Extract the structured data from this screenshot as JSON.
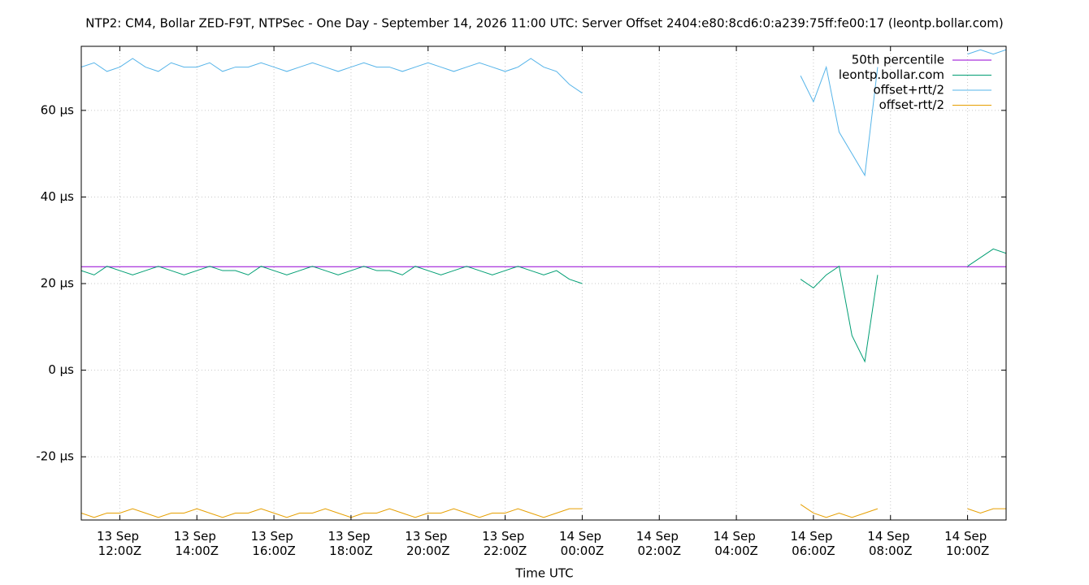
{
  "chart_data": {
    "type": "line",
    "title": "NTP2: CM4, Bollar ZED-F9T, NTPSec - One Day - September 14, 2026 11:00 UTC: Server Offset 2404:e80:8cd6:0:a239:75ff:fe00:17 (leontp.bollar.com)",
    "x_label": "Time UTC",
    "xlim": [
      "2026-09-13T11:00:00Z",
      "2026-09-14T11:00:00Z"
    ],
    "xticks": [
      {
        "value": "2026-09-13T12:00:00Z",
        "label": "13 Sep 12:00Z"
      },
      {
        "value": "2026-09-13T14:00:00Z",
        "label": "13 Sep 14:00Z"
      },
      {
        "value": "2026-09-13T16:00:00Z",
        "label": "13 Sep 16:00Z"
      },
      {
        "value": "2026-09-13T18:00:00Z",
        "label": "13 Sep 18:00Z"
      },
      {
        "value": "2026-09-13T20:00:00Z",
        "label": "13 Sep 20:00Z"
      },
      {
        "value": "2026-09-13T22:00:00Z",
        "label": "13 Sep 22:00Z"
      },
      {
        "value": "2026-09-14T00:00:00Z",
        "label": "14 Sep 00:00Z"
      },
      {
        "value": "2026-09-14T02:00:00Z",
        "label": "14 Sep 02:00Z"
      },
      {
        "value": "2026-09-14T04:00:00Z",
        "label": "14 Sep 04:00Z"
      },
      {
        "value": "2026-09-14T06:00:00Z",
        "label": "14 Sep 06:00Z"
      },
      {
        "value": "2026-09-14T08:00:00Z",
        "label": "14 Sep 08:00Z"
      },
      {
        "value": "2026-09-14T10:00:00Z",
        "label": "14 Sep 10:00Z"
      }
    ],
    "ylim": [
      -34.6,
      74.8
    ],
    "yticks": [
      {
        "value": -20,
        "label": "-20 µs"
      },
      {
        "value": 0,
        "label": "0 µs"
      },
      {
        "value": 20,
        "label": "20 µs"
      },
      {
        "value": 40,
        "label": "40 µs"
      },
      {
        "value": 60,
        "label": "60 µs"
      }
    ],
    "grid": true,
    "legend": "top-right",
    "x": [
      "2026-09-13T11:00:00Z",
      "2026-09-13T11:20:00Z",
      "2026-09-13T11:40:00Z",
      "2026-09-13T12:00:00Z",
      "2026-09-13T12:20:00Z",
      "2026-09-13T12:40:00Z",
      "2026-09-13T13:00:00Z",
      "2026-09-13T13:20:00Z",
      "2026-09-13T13:40:00Z",
      "2026-09-13T14:00:00Z",
      "2026-09-13T14:20:00Z",
      "2026-09-13T14:40:00Z",
      "2026-09-13T15:00:00Z",
      "2026-09-13T15:20:00Z",
      "2026-09-13T15:40:00Z",
      "2026-09-13T16:00:00Z",
      "2026-09-13T16:20:00Z",
      "2026-09-13T16:40:00Z",
      "2026-09-13T17:00:00Z",
      "2026-09-13T17:20:00Z",
      "2026-09-13T17:40:00Z",
      "2026-09-13T18:00:00Z",
      "2026-09-13T18:20:00Z",
      "2026-09-13T18:40:00Z",
      "2026-09-13T19:00:00Z",
      "2026-09-13T19:20:00Z",
      "2026-09-13T19:40:00Z",
      "2026-09-13T20:00:00Z",
      "2026-09-13T20:20:00Z",
      "2026-09-13T20:40:00Z",
      "2026-09-13T21:00:00Z",
      "2026-09-13T21:20:00Z",
      "2026-09-13T21:40:00Z",
      "2026-09-13T22:00:00Z",
      "2026-09-13T22:20:00Z",
      "2026-09-13T22:40:00Z",
      "2026-09-13T23:00:00Z",
      "2026-09-13T23:20:00Z",
      "2026-09-13T23:40:00Z",
      "2026-09-14T00:00:00Z",
      "2026-09-14T00:20:00Z",
      "2026-09-14T00:40:00Z",
      "2026-09-14T01:00:00Z",
      "2026-09-14T01:20:00Z",
      "2026-09-14T01:40:00Z",
      "2026-09-14T02:00:00Z",
      "2026-09-14T02:20:00Z",
      "2026-09-14T02:40:00Z",
      "2026-09-14T03:00:00Z",
      "2026-09-14T03:20:00Z",
      "2026-09-14T03:40:00Z",
      "2026-09-14T04:00:00Z",
      "2026-09-14T04:20:00Z",
      "2026-09-14T04:40:00Z",
      "2026-09-14T05:00:00Z",
      "2026-09-14T05:20:00Z",
      "2026-09-14T05:40:00Z",
      "2026-09-14T06:00:00Z",
      "2026-09-14T06:20:00Z",
      "2026-09-14T06:40:00Z",
      "2026-09-14T07:00:00Z",
      "2026-09-14T07:20:00Z",
      "2026-09-14T07:40:00Z",
      "2026-09-14T08:00:00Z",
      "2026-09-14T08:20:00Z",
      "2026-09-14T08:40:00Z",
      "2026-09-14T09:00:00Z",
      "2026-09-14T09:20:00Z",
      "2026-09-14T09:40:00Z",
      "2026-09-14T10:00:00Z",
      "2026-09-14T10:20:00Z",
      "2026-09-14T10:40:00Z",
      "2026-09-14T11:00:00Z"
    ],
    "series": [
      {
        "name": "50th percentile",
        "color": "#9400d3",
        "x": [
          "2026-09-13T11:00:00Z",
          "2026-09-14T11:00:00Z"
        ],
        "values": [
          23.9,
          23.9
        ]
      },
      {
        "name": "leontp.bollar.com",
        "color": "#009e73",
        "values": [
          23,
          22,
          24,
          23,
          22,
          23,
          24,
          23,
          22,
          23,
          24,
          23,
          23,
          22,
          24,
          23,
          22,
          23,
          24,
          23,
          22,
          23,
          24,
          23,
          23,
          22,
          24,
          23,
          22,
          23,
          24,
          23,
          22,
          23,
          24,
          23,
          22,
          23,
          21,
          20,
          null,
          null,
          null,
          null,
          null,
          null,
          null,
          null,
          null,
          null,
          null,
          null,
          null,
          null,
          null,
          null,
          21,
          19,
          22,
          24,
          8,
          2,
          22,
          null,
          null,
          null,
          null,
          null,
          null,
          24,
          26,
          28,
          27
        ]
      },
      {
        "name": "offset+rtt/2",
        "color": "#56b4e9",
        "values": [
          70,
          71,
          69,
          70,
          72,
          70,
          69,
          71,
          70,
          70,
          71,
          69,
          70,
          70,
          71,
          70,
          69,
          70,
          71,
          70,
          69,
          70,
          71,
          70,
          70,
          69,
          70,
          71,
          70,
          69,
          70,
          71,
          70,
          69,
          70,
          72,
          70,
          69,
          66,
          64,
          null,
          null,
          null,
          null,
          null,
          null,
          null,
          null,
          null,
          null,
          null,
          null,
          null,
          null,
          null,
          null,
          68,
          62,
          70,
          55,
          50,
          45,
          70,
          null,
          null,
          null,
          null,
          null,
          null,
          73,
          74,
          73,
          74
        ]
      },
      {
        "name": "offset-rtt/2",
        "color": "#e69f00",
        "values": [
          -33,
          -34,
          -33,
          -33,
          -32,
          -33,
          -34,
          -33,
          -33,
          -32,
          -33,
          -34,
          -33,
          -33,
          -32,
          -33,
          -34,
          -33,
          -33,
          -32,
          -33,
          -34,
          -33,
          -33,
          -32,
          -33,
          -34,
          -33,
          -33,
          -32,
          -33,
          -34,
          -33,
          -33,
          -32,
          -33,
          -34,
          -33,
          -32,
          -32,
          null,
          null,
          null,
          null,
          null,
          null,
          null,
          null,
          null,
          null,
          null,
          null,
          null,
          null,
          null,
          null,
          -31,
          -33,
          -34,
          -33,
          -34,
          -33,
          -32,
          null,
          null,
          null,
          null,
          null,
          null,
          -32,
          -33,
          -32,
          -32
        ]
      }
    ]
  }
}
